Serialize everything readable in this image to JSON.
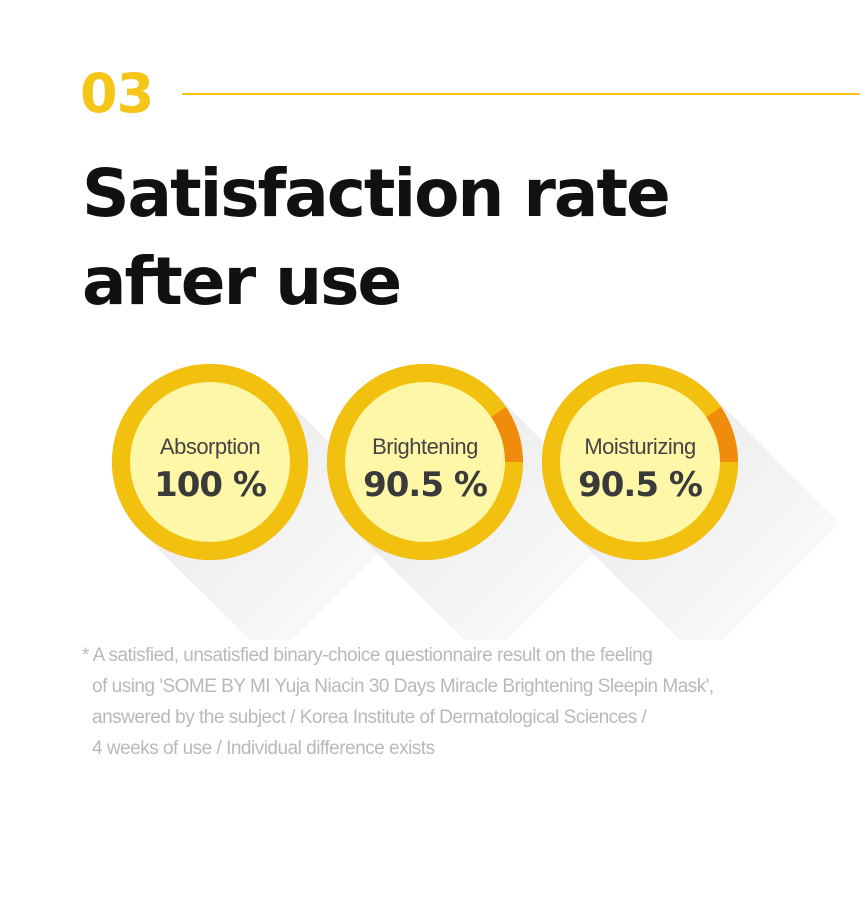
{
  "header": {
    "section_number": "03",
    "title_line1": "Satisfaction rate",
    "title_line2": "after use",
    "accent_color": "#f5c518"
  },
  "chart_data": {
    "type": "pie",
    "unit": "%",
    "items": [
      {
        "label": "Absorption",
        "value": 100,
        "display": "100 %"
      },
      {
        "label": "Brightening",
        "value": 90.5,
        "display": "90.5 %"
      },
      {
        "label": "Moisturizing",
        "value": 90.5,
        "display": "90.5 %"
      }
    ],
    "colors": {
      "filled": "#f2c10f",
      "remainder": "#f08c0c",
      "inner": "#fff7a8"
    }
  },
  "footnote": {
    "line1": "* A satisfied, unsatisfied binary-choice questionnaire result on the feeling",
    "line2": "of using 'SOME BY MI Yuja Niacin 30 Days Miracle Brightening Sleepin Mask',",
    "line3": "answered by the subject / Korea Institute of Dermatological Sciences /",
    "line4": "4 weeks of use / Individual difference exists"
  }
}
